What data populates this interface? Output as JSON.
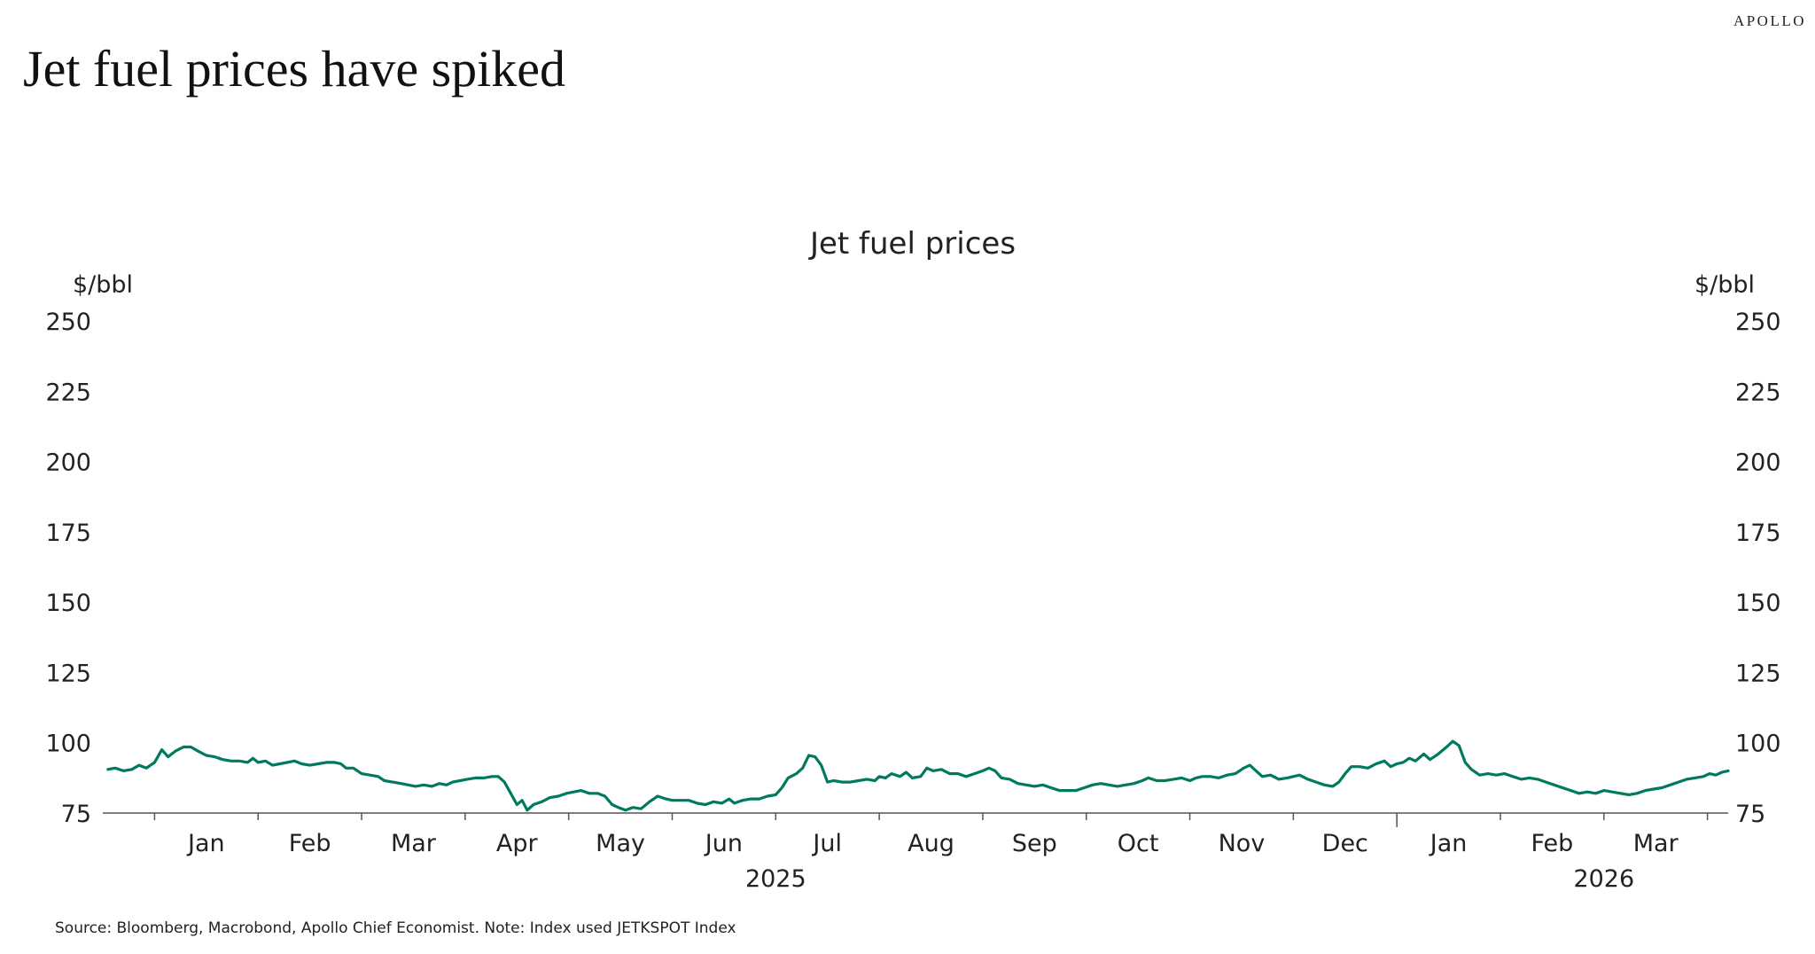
{
  "brand": "APOLLO",
  "headline": "Jet fuel prices have spiked",
  "source": "Source: Bloomberg, Macrobond, Apollo Chief Economist. Note: Index used JETKSPOT Index",
  "colors": {
    "line": "#007a5e",
    "axis": "#555555",
    "text": "#222222"
  },
  "chart_data": {
    "type": "line",
    "title": "Jet fuel prices",
    "ylabel_left": "$/bbl",
    "ylabel_right": "$/bbl",
    "ylim": [
      75,
      250
    ],
    "yticks": [
      75,
      100,
      125,
      150,
      175,
      200,
      225,
      250
    ],
    "grid": false,
    "legend": "none",
    "x_unit": "months since start of Jan 2025",
    "xlim": [
      -0.5,
      15.2
    ],
    "month_ticks": [
      0,
      1,
      2,
      3,
      4,
      5,
      6,
      7,
      8,
      9,
      10,
      11,
      12,
      13,
      14,
      15
    ],
    "month_labels": [
      {
        "label": "Jan",
        "x": 0.5
      },
      {
        "label": "Feb",
        "x": 1.5
      },
      {
        "label": "Mar",
        "x": 2.5
      },
      {
        "label": "Apr",
        "x": 3.5
      },
      {
        "label": "May",
        "x": 4.5
      },
      {
        "label": "Jun",
        "x": 5.5
      },
      {
        "label": "Jul",
        "x": 6.5
      },
      {
        "label": "Aug",
        "x": 7.5
      },
      {
        "label": "Sep",
        "x": 8.5
      },
      {
        "label": "Oct",
        "x": 9.5
      },
      {
        "label": "Nov",
        "x": 10.5
      },
      {
        "label": "Dec",
        "x": 11.5
      },
      {
        "label": "Jan",
        "x": 12.5
      },
      {
        "label": "Feb",
        "x": 13.5
      },
      {
        "label": "Mar",
        "x": 14.5
      }
    ],
    "year_labels": [
      {
        "label": "2025",
        "x": 6.0
      },
      {
        "label": "2026",
        "x": 14.0
      }
    ],
    "year_divider": 12,
    "series": [
      {
        "name": "Jet fuel prices",
        "points": [
          [
            -0.45,
            90.5
          ],
          [
            -0.38,
            91
          ],
          [
            -0.3,
            90
          ],
          [
            -0.22,
            90.5
          ],
          [
            -0.15,
            92
          ],
          [
            -0.08,
            91
          ],
          [
            0.0,
            93
          ],
          [
            0.07,
            97.5
          ],
          [
            0.13,
            95
          ],
          [
            0.2,
            97
          ],
          [
            0.28,
            98.5
          ],
          [
            0.35,
            98.5
          ],
          [
            0.42,
            97
          ],
          [
            0.5,
            95.5
          ],
          [
            0.58,
            95
          ],
          [
            0.66,
            94
          ],
          [
            0.74,
            93.5
          ],
          [
            0.82,
            93.5
          ],
          [
            0.9,
            93
          ],
          [
            0.95,
            94.5
          ],
          [
            1.0,
            93
          ],
          [
            1.07,
            93.5
          ],
          [
            1.14,
            92
          ],
          [
            1.21,
            92.5
          ],
          [
            1.28,
            93
          ],
          [
            1.35,
            93.5
          ],
          [
            1.42,
            92.5
          ],
          [
            1.5,
            92
          ],
          [
            1.58,
            92.5
          ],
          [
            1.66,
            93
          ],
          [
            1.74,
            93
          ],
          [
            1.8,
            92.5
          ],
          [
            1.85,
            91
          ],
          [
            1.92,
            91
          ],
          [
            2.0,
            89
          ],
          [
            2.08,
            88.5
          ],
          [
            2.16,
            88
          ],
          [
            2.22,
            86.5
          ],
          [
            2.3,
            86
          ],
          [
            2.38,
            85.5
          ],
          [
            2.45,
            85
          ],
          [
            2.52,
            84.5
          ],
          [
            2.6,
            85
          ],
          [
            2.68,
            84.5
          ],
          [
            2.75,
            85.5
          ],
          [
            2.82,
            85
          ],
          [
            2.88,
            86
          ],
          [
            2.95,
            86.5
          ],
          [
            3.02,
            87
          ],
          [
            3.1,
            87.5
          ],
          [
            3.18,
            87.5
          ],
          [
            3.26,
            88
          ],
          [
            3.32,
            88
          ],
          [
            3.38,
            86
          ],
          [
            3.44,
            82
          ],
          [
            3.5,
            78
          ],
          [
            3.55,
            79.5
          ],
          [
            3.6,
            76
          ],
          [
            3.66,
            78
          ],
          [
            3.74,
            79
          ],
          [
            3.82,
            80.5
          ],
          [
            3.9,
            81
          ],
          [
            3.98,
            82
          ],
          [
            4.05,
            82.5
          ],
          [
            4.12,
            83
          ],
          [
            4.2,
            82
          ],
          [
            4.28,
            82
          ],
          [
            4.35,
            81
          ],
          [
            4.42,
            78
          ],
          [
            4.48,
            77
          ],
          [
            4.55,
            76
          ],
          [
            4.62,
            77
          ],
          [
            4.7,
            76.5
          ],
          [
            4.78,
            79
          ],
          [
            4.86,
            81
          ],
          [
            4.94,
            80
          ],
          [
            5.0,
            79.5
          ],
          [
            5.08,
            79.5
          ],
          [
            5.16,
            79.5
          ],
          [
            5.24,
            78.5
          ],
          [
            5.32,
            78
          ],
          [
            5.4,
            79
          ],
          [
            5.48,
            78.5
          ],
          [
            5.55,
            80
          ],
          [
            5.6,
            78.5
          ],
          [
            5.68,
            79.5
          ],
          [
            5.76,
            80
          ],
          [
            5.84,
            80
          ],
          [
            5.92,
            81
          ],
          [
            6.0,
            81.5
          ],
          [
            6.06,
            84
          ],
          [
            6.12,
            87.5
          ],
          [
            6.2,
            89
          ],
          [
            6.26,
            91
          ],
          [
            6.32,
            95.5
          ],
          [
            6.38,
            95
          ],
          [
            6.44,
            92
          ],
          [
            6.5,
            86
          ],
          [
            6.56,
            86.5
          ],
          [
            6.64,
            86
          ],
          [
            6.72,
            86
          ],
          [
            6.8,
            86.5
          ],
          [
            6.88,
            87
          ],
          [
            6.96,
            86.5
          ],
          [
            7.0,
            88
          ],
          [
            7.06,
            87.5
          ],
          [
            7.12,
            89
          ],
          [
            7.2,
            88
          ],
          [
            7.26,
            89.5
          ],
          [
            7.32,
            87.5
          ],
          [
            7.4,
            88
          ],
          [
            7.46,
            91
          ],
          [
            7.52,
            90
          ],
          [
            7.6,
            90.5
          ],
          [
            7.68,
            89
          ],
          [
            7.76,
            89
          ],
          [
            7.84,
            88
          ],
          [
            7.92,
            89
          ],
          [
            8.0,
            90
          ],
          [
            8.06,
            91
          ],
          [
            8.12,
            90
          ],
          [
            8.18,
            87.5
          ],
          [
            8.26,
            87
          ],
          [
            8.34,
            85.5
          ],
          [
            8.42,
            85
          ],
          [
            8.5,
            84.5
          ],
          [
            8.58,
            85
          ],
          [
            8.66,
            84
          ],
          [
            8.74,
            83
          ],
          [
            8.82,
            83
          ],
          [
            8.9,
            83
          ],
          [
            8.98,
            84
          ],
          [
            9.06,
            85
          ],
          [
            9.14,
            85.5
          ],
          [
            9.22,
            85
          ],
          [
            9.3,
            84.5
          ],
          [
            9.38,
            85
          ],
          [
            9.46,
            85.5
          ],
          [
            9.54,
            86.5
          ],
          [
            9.6,
            87.5
          ],
          [
            9.68,
            86.5
          ],
          [
            9.76,
            86.5
          ],
          [
            9.84,
            87
          ],
          [
            9.92,
            87.5
          ],
          [
            10.0,
            86.5
          ],
          [
            10.06,
            87.5
          ],
          [
            10.12,
            88
          ],
          [
            10.2,
            88
          ],
          [
            10.28,
            87.5
          ],
          [
            10.36,
            88.5
          ],
          [
            10.44,
            89
          ],
          [
            10.52,
            91
          ],
          [
            10.58,
            92
          ],
          [
            10.64,
            90
          ],
          [
            10.7,
            88
          ],
          [
            10.78,
            88.5
          ],
          [
            10.86,
            87
          ],
          [
            10.94,
            87.5
          ],
          [
            11.0,
            88
          ],
          [
            11.06,
            88.5
          ],
          [
            11.14,
            87
          ],
          [
            11.22,
            86
          ],
          [
            11.3,
            85
          ],
          [
            11.38,
            84.5
          ],
          [
            11.44,
            86
          ],
          [
            11.5,
            89
          ],
          [
            11.56,
            91.5
          ],
          [
            11.64,
            91.5
          ],
          [
            11.72,
            91
          ],
          [
            11.8,
            92.5
          ],
          [
            11.88,
            93.5
          ],
          [
            11.94,
            91.5
          ],
          [
            12.0,
            92.5
          ],
          [
            12.06,
            93
          ],
          [
            12.12,
            94.5
          ],
          [
            12.18,
            93.5
          ],
          [
            12.26,
            96
          ],
          [
            12.32,
            94
          ],
          [
            12.4,
            96
          ],
          [
            12.48,
            98.5
          ],
          [
            12.54,
            100.5
          ],
          [
            12.6,
            99
          ],
          [
            12.66,
            93
          ],
          [
            12.72,
            90.5
          ],
          [
            12.8,
            88.5
          ],
          [
            12.88,
            89
          ],
          [
            12.96,
            88.5
          ],
          [
            13.04,
            89
          ],
          [
            13.12,
            88
          ],
          [
            13.2,
            87
          ],
          [
            13.28,
            87.5
          ],
          [
            13.36,
            87
          ],
          [
            13.44,
            86
          ],
          [
            13.52,
            85
          ],
          [
            13.6,
            84
          ],
          [
            13.68,
            83
          ],
          [
            13.76,
            82
          ],
          [
            13.84,
            82.5
          ],
          [
            13.92,
            82
          ],
          [
            14.0,
            83
          ],
          [
            14.08,
            82.5
          ],
          [
            14.16,
            82
          ],
          [
            14.24,
            81.5
          ],
          [
            14.32,
            82
          ],
          [
            14.4,
            83
          ],
          [
            14.48,
            83.5
          ],
          [
            14.56,
            84
          ],
          [
            14.64,
            85
          ],
          [
            14.72,
            86
          ],
          [
            14.8,
            87
          ],
          [
            14.88,
            87.5
          ],
          [
            14.96,
            88
          ],
          [
            15.02,
            89
          ],
          [
            15.08,
            88.5
          ],
          [
            15.14,
            89.5
          ],
          [
            15.2,
            90
          ]
        ]
      }
    ]
  }
}
